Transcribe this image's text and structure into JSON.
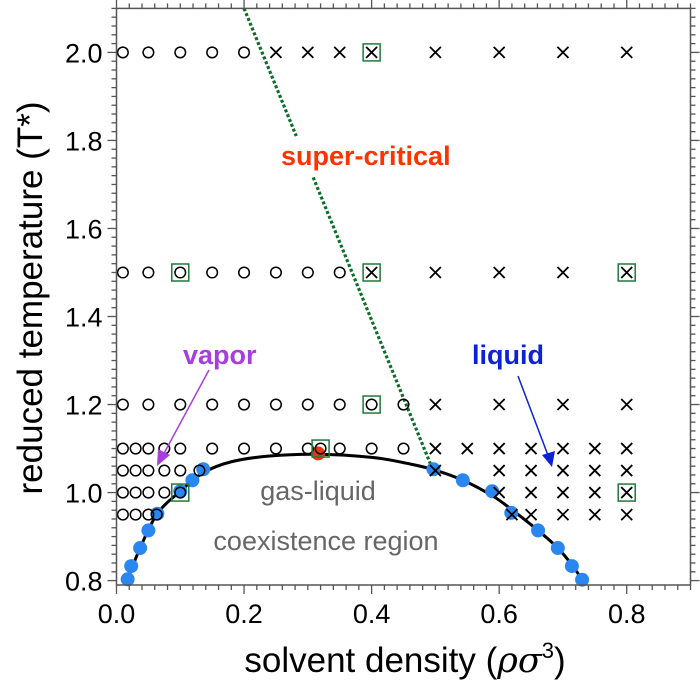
{
  "chart_data": {
    "type": "scatter",
    "xlabel": "solvent density (ρσ³)",
    "xlabel_parts": {
      "text": "solvent density (",
      "rho_sigma": "ρσ",
      "exponent": "3",
      "close": ")"
    },
    "ylabel": "reduced temperature (T*)",
    "xlim": [
      0,
      0.9
    ],
    "ylim": [
      0.79,
      2.1
    ],
    "x_ticks": [
      0.0,
      0.2,
      0.4,
      0.6,
      0.8
    ],
    "x_tick_labels": [
      "0.0",
      "0.2",
      "0.4",
      "0.6",
      "0.8"
    ],
    "y_ticks": [
      0.8,
      1.0,
      1.2,
      1.4,
      1.6,
      1.8,
      2.0
    ],
    "y_tick_labels": [
      "0.8",
      "1.0",
      "1.2",
      "1.4",
      "1.6",
      "1.8",
      "2.0"
    ],
    "minor_tick_step": 0.02,
    "grid": false,
    "vapor_state_points": [
      {
        "T": 2.0,
        "x": [
          0.01,
          0.05,
          0.1,
          0.15,
          0.2
        ]
      },
      {
        "T": 1.5,
        "x": [
          0.01,
          0.05,
          0.1,
          0.15,
          0.2,
          0.25,
          0.3,
          0.35
        ]
      },
      {
        "T": 1.2,
        "x": [
          0.01,
          0.05,
          0.1,
          0.15,
          0.2,
          0.25,
          0.3,
          0.35,
          0.4,
          0.45
        ]
      },
      {
        "T": 1.1,
        "x": [
          0.01,
          0.03,
          0.05,
          0.075,
          0.1,
          0.15,
          0.2,
          0.25,
          0.3,
          0.32,
          0.35,
          0.4,
          0.45
        ]
      },
      {
        "T": 1.05,
        "x": [
          0.01,
          0.03,
          0.05,
          0.075,
          0.1,
          0.13
        ]
      },
      {
        "T": 1.0,
        "x": [
          0.01,
          0.03,
          0.05,
          0.075,
          0.1
        ]
      },
      {
        "T": 0.95,
        "x": [
          0.01,
          0.03,
          0.05,
          0.063
        ]
      }
    ],
    "liquid_state_points": [
      {
        "T": 2.0,
        "x": [
          0.25,
          0.3,
          0.35,
          0.4,
          0.5,
          0.6,
          0.7,
          0.8
        ]
      },
      {
        "T": 1.5,
        "x": [
          0.4,
          0.5,
          0.6,
          0.7,
          0.8
        ]
      },
      {
        "T": 1.2,
        "x": [
          0.5,
          0.6,
          0.7,
          0.8
        ]
      },
      {
        "T": 1.1,
        "x": [
          0.5,
          0.55,
          0.6,
          0.65,
          0.7,
          0.75,
          0.8
        ]
      },
      {
        "T": 1.05,
        "x": [
          0.5,
          0.6,
          0.65,
          0.7,
          0.75,
          0.8
        ]
      },
      {
        "T": 1.0,
        "x": [
          0.6,
          0.65,
          0.7,
          0.75,
          0.8
        ]
      },
      {
        "T": 0.95,
        "x": [
          0.62,
          0.65,
          0.7,
          0.75,
          0.8
        ]
      }
    ],
    "highlighted_points": [
      [
        0.4,
        2.0
      ],
      [
        0.1,
        1.5
      ],
      [
        0.4,
        1.5
      ],
      [
        0.8,
        1.5
      ],
      [
        0.4,
        1.2
      ],
      [
        0.32,
        1.1
      ],
      [
        0.1,
        1.0
      ],
      [
        0.8,
        1.0
      ]
    ],
    "binodal_points": [
      [
        0.0175,
        0.803
      ],
      [
        0.023,
        0.833
      ],
      [
        0.037,
        0.874
      ],
      [
        0.05,
        0.914
      ],
      [
        0.064,
        0.952
      ],
      [
        0.1,
        1.003
      ],
      [
        0.119,
        1.028
      ],
      [
        0.136,
        1.053
      ],
      [
        0.497,
        1.053
      ],
      [
        0.543,
        1.028
      ],
      [
        0.589,
        1.003
      ],
      [
        0.619,
        0.954
      ],
      [
        0.661,
        0.914
      ],
      [
        0.692,
        0.874
      ],
      [
        0.714,
        0.833
      ],
      [
        0.73,
        0.802
      ]
    ],
    "binodal_fit_curve": [
      [
        0.0175,
        0.803
      ],
      [
        0.037,
        0.874
      ],
      [
        0.064,
        0.952
      ],
      [
        0.1,
        1.003
      ],
      [
        0.136,
        1.045
      ],
      [
        0.18,
        1.07
      ],
      [
        0.24,
        1.083
      ],
      [
        0.316,
        1.087
      ],
      [
        0.4,
        1.08
      ],
      [
        0.45,
        1.068
      ],
      [
        0.497,
        1.052
      ],
      [
        0.543,
        1.028
      ],
      [
        0.589,
        0.993
      ],
      [
        0.619,
        0.962
      ],
      [
        0.661,
        0.914
      ],
      [
        0.692,
        0.874
      ],
      [
        0.714,
        0.836
      ],
      [
        0.73,
        0.802
      ]
    ],
    "critical_point": [
      0.316,
      1.089
    ],
    "widom_line": {
      "from": [
        0.2,
        2.1
      ],
      "to": [
        0.492,
        1.066
      ],
      "gap_T": [
        1.81,
        1.716
      ]
    },
    "colors": {
      "binodal_points": "#2b87f0",
      "critical_point": "#ee3311",
      "widom_line": "#0a6e26",
      "highlight_box": "#1d7a3a",
      "vapor": "#a63fdc",
      "liquid": "#0b22d6",
      "super_critical": "#ff3300",
      "region_text": "#666666"
    }
  },
  "annotations": {
    "super_critical": "super-critical",
    "vapor": "vapor",
    "liquid": "liquid",
    "region_line1": "gas-liquid",
    "region_line2": "coexistence region"
  }
}
